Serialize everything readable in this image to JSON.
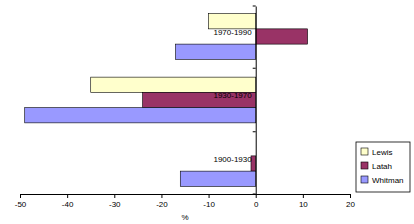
{
  "chart_data": {
    "type": "bar",
    "orientation": "horizontal",
    "categories": [
      "1970-1990",
      "1930-1970",
      "1900-1930"
    ],
    "series": [
      {
        "name": "Lewis",
        "color": "#ffffcc",
        "values": [
          -10,
          -35,
          0
        ]
      },
      {
        "name": "Latah",
        "color": "#993366",
        "values": [
          11,
          -24,
          -1
        ]
      },
      {
        "name": "Whitman",
        "color": "#9999ff",
        "values": [
          -17,
          -49,
          -16
        ]
      }
    ],
    "xlabel": "%",
    "xlim": [
      -50,
      20
    ],
    "xticks": [
      -50,
      -40,
      -30,
      -20,
      -10,
      0,
      10,
      20
    ],
    "legend": "right"
  }
}
